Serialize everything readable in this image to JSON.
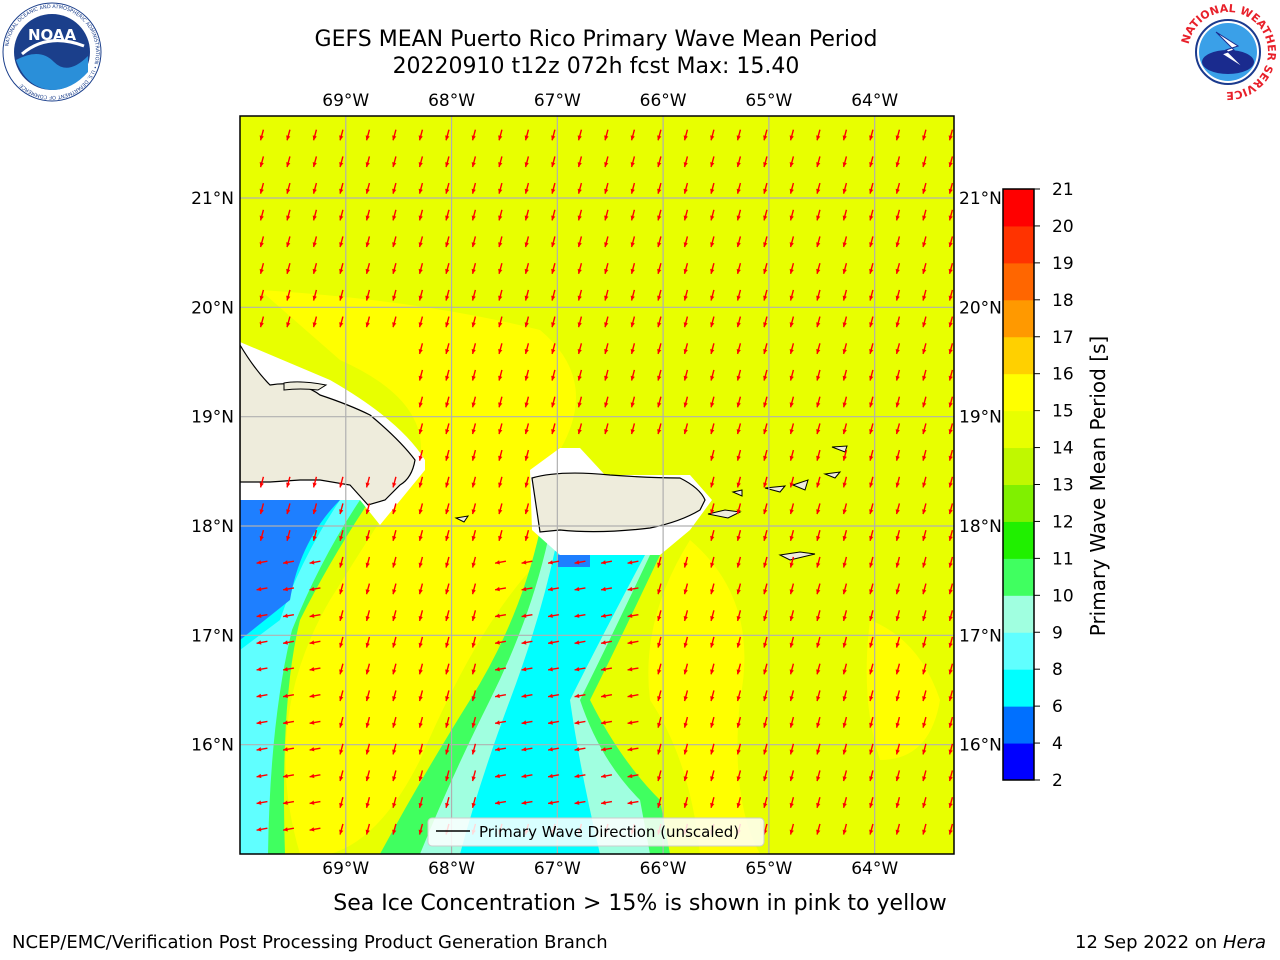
{
  "header": {
    "title_line1": "GEFS MEAN Puerto Rico Primary Wave Mean Period",
    "title_line2": "20220910 t12z 072h fcst   Max: 15.40"
  },
  "logos": {
    "left": "noaa-logo",
    "left_text": "NOAA",
    "left_ring_text": "NATIONAL OCEANIC AND ATMOSPHERIC ADMINISTRATION • U.S. DEPARTMENT OF COMMERCE",
    "right": "nws-logo",
    "right_ring_text": "NATIONAL WEATHER SERVICE"
  },
  "map": {
    "lon_labels": [
      "69°W",
      "68°W",
      "67°W",
      "66°W",
      "65°W",
      "64°W"
    ],
    "lat_labels": [
      "21°N",
      "20°N",
      "19°N",
      "18°N",
      "17°N",
      "16°N"
    ],
    "lon_values": [
      -69,
      -68,
      -67,
      -66,
      -65,
      -64
    ],
    "lat_values": [
      21,
      20,
      19,
      18,
      17,
      16
    ],
    "lon_range": [
      -70.0,
      -63.25
    ],
    "lat_range": [
      15.0,
      21.75
    ],
    "legend_label": "Primary Wave Direction (unscaled)",
    "arrow_color": "#ff0000",
    "land_color": "#eeecdc",
    "grid_color": "#b0b0b0"
  },
  "colorbar": {
    "label": "Primary Wave Mean Period [s]",
    "ticks": [
      "2",
      "4",
      "6",
      "8",
      "9",
      "10",
      "11",
      "12",
      "13",
      "14",
      "15",
      "16",
      "17",
      "18",
      "19",
      "20",
      "21"
    ],
    "colors": [
      "#0000ff",
      "#0070ff",
      "#00ffff",
      "#60ffff",
      "#a0ffe0",
      "#40ff60",
      "#20f000",
      "#80f000",
      "#c0f800",
      "#e8ff00",
      "#ffff00",
      "#ffd000",
      "#ff9900",
      "#ff6600",
      "#ff3300",
      "#ff0000"
    ]
  },
  "footer": {
    "subtitle": "Sea Ice Concentration > 15% is shown in pink to yellow",
    "left": "NCEP/EMC/Verification Post Processing Product Generation Branch",
    "right_date": "12 Sep 2022 on ",
    "right_host": "Hera"
  }
}
